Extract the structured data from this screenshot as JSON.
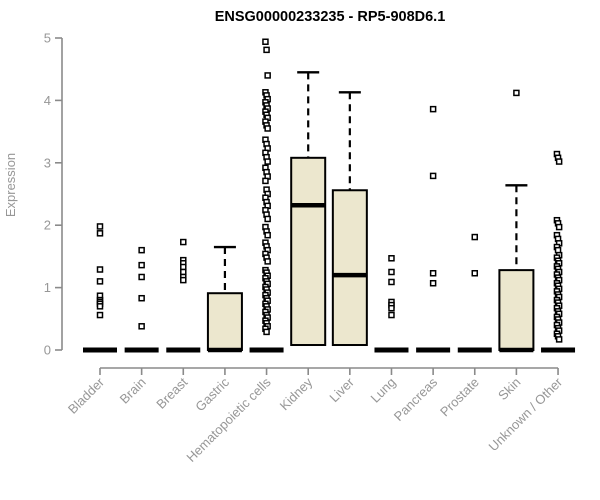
{
  "chart_data": {
    "type": "boxplot",
    "title": "ENSG00000233235 - RP5-908D6.1",
    "ylabel": "Expression",
    "ylim": [
      0,
      5
    ],
    "yticks": [
      0,
      1,
      2,
      3,
      4,
      5
    ],
    "grid": false,
    "legend": "none",
    "box_fill": "#ECE7CE",
    "line_color": "#000000",
    "axis_color": "#8a8a8a",
    "label_color": "#979797",
    "title_color": "#000000",
    "categories": [
      "Bladder",
      "Brain",
      "Breast",
      "Gastric",
      "Hematopoietic cells",
      "Kidney",
      "Liver",
      "Lung",
      "Pancreas",
      "Prostate",
      "Skin",
      "Unknown / Other"
    ],
    "series": [
      {
        "category": "Bladder",
        "q1": 0,
        "median": 0,
        "q3": 0,
        "lower": 0,
        "upper": 0,
        "outliers": [
          1.98,
          1.87,
          1.29,
          1.1,
          0.87,
          0.8,
          0.77,
          0.74,
          0.7,
          0.56
        ]
      },
      {
        "category": "Brain",
        "q1": 0,
        "median": 0,
        "q3": 0,
        "lower": 0,
        "upper": 0,
        "outliers": [
          1.6,
          1.36,
          1.17,
          0.83,
          0.38
        ]
      },
      {
        "category": "Breast",
        "q1": 0,
        "median": 0,
        "q3": 0,
        "lower": 0,
        "upper": 0,
        "outliers": [
          1.73,
          1.44,
          1.39,
          1.33,
          1.25,
          1.17,
          1.12
        ]
      },
      {
        "category": "Gastric",
        "q1": 0,
        "median": 0,
        "q3": 0.91,
        "lower": 0,
        "upper": 1.65,
        "outliers": []
      },
      {
        "category": "Hematopoietic cells",
        "q1": 0,
        "median": 0,
        "q3": 0,
        "lower": 0,
        "upper": 0,
        "outliers": [
          4.94,
          4.81,
          4.4,
          4.13,
          4.08,
          4.02,
          3.97,
          3.92,
          3.87,
          3.82,
          3.77,
          3.72,
          3.66,
          3.6,
          3.55,
          3.37,
          3.3,
          3.23,
          3.16,
          3.09,
          3.02,
          2.92,
          2.85,
          2.78,
          2.71,
          2.57,
          2.5,
          2.44,
          2.37,
          2.31,
          2.24,
          2.17,
          2.1,
          1.97,
          1.9,
          1.84,
          1.72,
          1.66,
          1.6,
          1.54,
          1.48,
          1.42,
          1.28,
          1.24,
          1.19,
          1.15,
          1.1,
          1.06,
          1.01,
          0.97,
          0.92,
          0.88,
          0.83,
          0.79,
          0.74,
          0.7,
          0.65,
          0.61,
          0.56,
          0.52,
          0.47,
          0.43,
          0.38,
          0.34,
          0.29
        ]
      },
      {
        "category": "Kidney",
        "q1": 0.08,
        "median": 2.32,
        "q3": 3.08,
        "lower": 0.08,
        "upper": 4.45,
        "outliers": []
      },
      {
        "category": "Liver",
        "q1": 0.08,
        "median": 1.2,
        "q3": 2.56,
        "lower": 0.08,
        "upper": 4.13,
        "outliers": []
      },
      {
        "category": "Lung",
        "q1": 0,
        "median": 0,
        "q3": 0,
        "lower": 0,
        "upper": 0,
        "outliers": [
          1.47,
          1.25,
          1.09,
          0.77,
          0.72,
          0.67,
          0.56
        ]
      },
      {
        "category": "Pancreas",
        "q1": 0,
        "median": 0,
        "q3": 0,
        "lower": 0,
        "upper": 0,
        "outliers": [
          3.86,
          2.79,
          1.23,
          1.07
        ]
      },
      {
        "category": "Prostate",
        "q1": 0,
        "median": 0,
        "q3": 0,
        "lower": 0,
        "upper": 0,
        "outliers": [
          1.81,
          1.23
        ]
      },
      {
        "category": "Skin",
        "q1": 0,
        "median": 0,
        "q3": 1.28,
        "lower": 0,
        "upper": 2.64,
        "outliers": [
          4.12
        ]
      },
      {
        "category": "Unknown / Other",
        "q1": 0,
        "median": 0,
        "q3": 0,
        "lower": 0,
        "upper": 0,
        "outliers": [
          3.14,
          3.08,
          3.02,
          2.08,
          2.03,
          1.97,
          1.84,
          1.78,
          1.71,
          1.65,
          1.6,
          1.52,
          1.48,
          1.43,
          1.39,
          1.34,
          1.3,
          1.25,
          1.21,
          1.16,
          1.12,
          1.07,
          1.03,
          0.98,
          0.94,
          0.89,
          0.85,
          0.8,
          0.76,
          0.71,
          0.67,
          0.62,
          0.58,
          0.53,
          0.49,
          0.44,
          0.4,
          0.35,
          0.31,
          0.26,
          0.22,
          0.17
        ]
      }
    ]
  }
}
